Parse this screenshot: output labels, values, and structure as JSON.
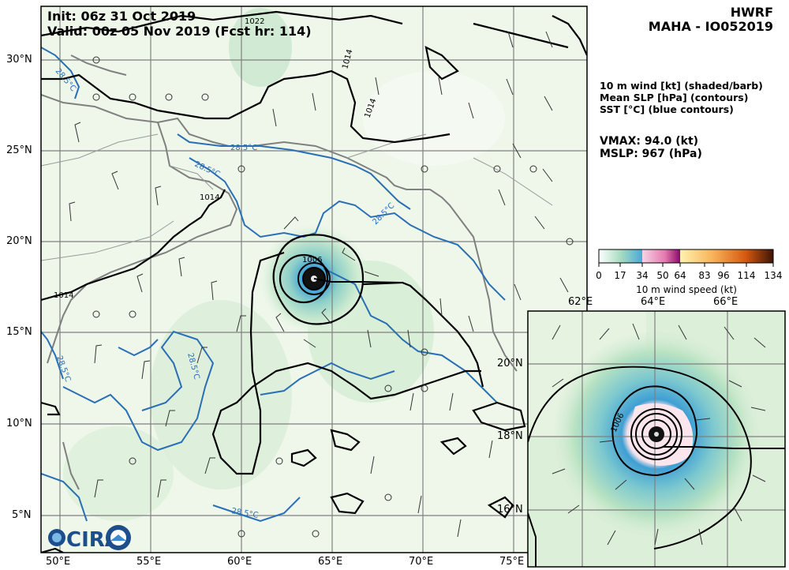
{
  "header": {
    "init": "Init:   06z 31 Oct 2019",
    "valid": "Valid: 00z 05 Nov 2019 (Fcst hr: 114)",
    "model": "HWRF",
    "storm": "MAHA - IO052019"
  },
  "legend": {
    "line1": "10 m wind [kt] (shaded/barb)",
    "line2": "Mean SLP [hPa] (contours)",
    "line3": "SST [°C] (blue contours)"
  },
  "stats": {
    "vmax": "VMAX:  94.0 (kt)",
    "mslp": "MSLP:  967 (hPa)"
  },
  "colorbar": {
    "ticks": [
      "0",
      "17",
      "34",
      "50",
      "64",
      "83",
      "96",
      "114",
      "134"
    ],
    "label": "10 m wind speed (kt)"
  },
  "main_map": {
    "lon_labels": [
      "50°E",
      "55°E",
      "60°E",
      "65°E",
      "70°E",
      "75°E"
    ],
    "lat_labels": [
      "30°N",
      "25°N",
      "20°N",
      "15°N",
      "10°N",
      "5°N"
    ],
    "contour_labels": [
      "1022",
      "1014",
      "1014",
      "1014",
      "1014",
      "1006",
      "28.5°C",
      "28.5°C",
      "28.5°C",
      "28.5°C",
      "28.5°C",
      "28.5°C",
      "28.5°C"
    ]
  },
  "inset_map": {
    "lon_labels": [
      "62°E",
      "64°E",
      "66°E"
    ],
    "lat_labels": [
      "20°N",
      "18°N",
      "16°N"
    ],
    "contour_label": "1006"
  },
  "logo": {
    "text": "CIRA"
  },
  "colors": {
    "slp_contour": "#000000",
    "sst_contour": "#2a6fb5",
    "coastline": "#808080",
    "grid": "#808080",
    "wind_light": "#e8f4e4",
    "wind_mid": "#b9e0c4",
    "wind_34": "#46a5d6",
    "wind_50": "#c8207a",
    "wind_64": "#ffd27a",
    "wind_83": "#f08a2a",
    "wind_96": "#c84a10",
    "wind_134": "#4a1a0a"
  }
}
